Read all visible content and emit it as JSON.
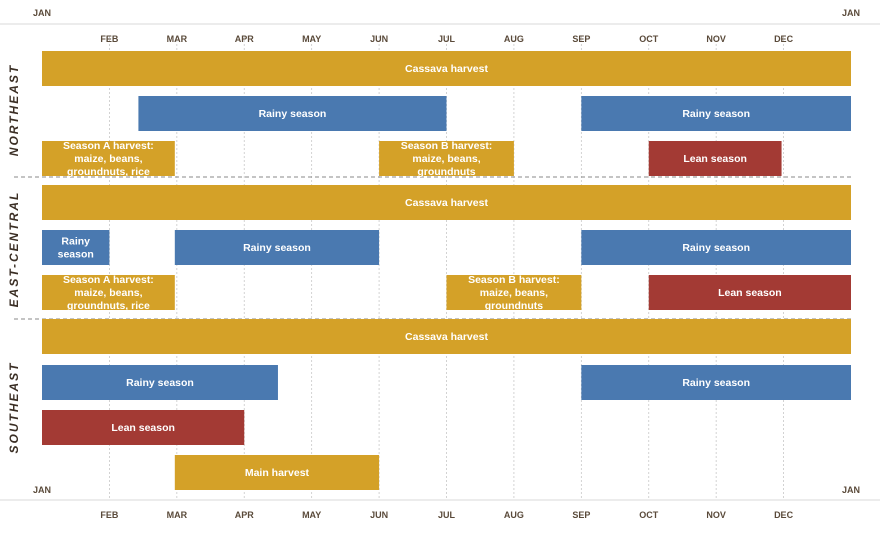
{
  "chart_data": {
    "type": "gantt",
    "title": "",
    "start_label": "JAN",
    "end_label": "JAN",
    "months": [
      "FEB",
      "MAR",
      "APR",
      "MAY",
      "JUN",
      "JUL",
      "AUG",
      "SEP",
      "OCT",
      "NOV",
      "DEC"
    ],
    "colors": {
      "harvest": "#d4a128",
      "rainy": "#4a79b0",
      "lean": "#a33a34"
    },
    "regions": [
      {
        "name": "NORTHEAST",
        "rows": [
          [
            {
              "label": "Cassava harvest",
              "kind": "harvest",
              "start": 0,
              "end": 12
            }
          ],
          [
            {
              "label": "Rainy season",
              "kind": "rainy",
              "start": 1.43,
              "end": 6.0
            },
            {
              "label": "Rainy season",
              "kind": "rainy",
              "start": 8.0,
              "end": 12
            }
          ],
          [
            {
              "label": "Season A harvest: maize, beans, groundnuts, rice",
              "kind": "harvest",
              "start": 0,
              "end": 1.97
            },
            {
              "label": "Season B harvest: maize, beans, groundnuts",
              "kind": "harvest",
              "start": 5.0,
              "end": 7.0
            },
            {
              "label": "Lean season",
              "kind": "lean",
              "start": 9.0,
              "end": 10.97
            }
          ]
        ]
      },
      {
        "name": "EAST-CENTRAL",
        "rows": [
          [
            {
              "label": "Cassava harvest",
              "kind": "harvest",
              "start": 0,
              "end": 12
            }
          ],
          [
            {
              "label": "Rainy season",
              "kind": "rainy",
              "start": 0,
              "end": 1.0
            },
            {
              "label": "Rainy season",
              "kind": "rainy",
              "start": 1.97,
              "end": 5.0
            },
            {
              "label": "Rainy season",
              "kind": "rainy",
              "start": 8.0,
              "end": 12
            }
          ],
          [
            {
              "label": "Season A harvest: maize, beans, groundnuts, rice",
              "kind": "harvest",
              "start": 0,
              "end": 1.97
            },
            {
              "label": "Season B harvest: maize, beans, groundnuts",
              "kind": "harvest",
              "start": 6.0,
              "end": 8.0
            },
            {
              "label": "Lean season",
              "kind": "lean",
              "start": 9.0,
              "end": 12
            }
          ]
        ]
      },
      {
        "name": "SOUTHEAST",
        "rows": [
          [
            {
              "label": "Cassava harvest",
              "kind": "harvest",
              "start": 0,
              "end": 12
            }
          ],
          [
            {
              "label": "Rainy season",
              "kind": "rainy",
              "start": 0,
              "end": 3.5
            },
            {
              "label": "Rainy season",
              "kind": "rainy",
              "start": 8.0,
              "end": 12
            }
          ],
          [
            {
              "label": "Lean season",
              "kind": "lean",
              "start": 0,
              "end": 3.0
            }
          ],
          [
            {
              "label": "Main harvest",
              "kind": "harvest",
              "start": 1.97,
              "end": 5.0
            }
          ]
        ]
      }
    ]
  }
}
